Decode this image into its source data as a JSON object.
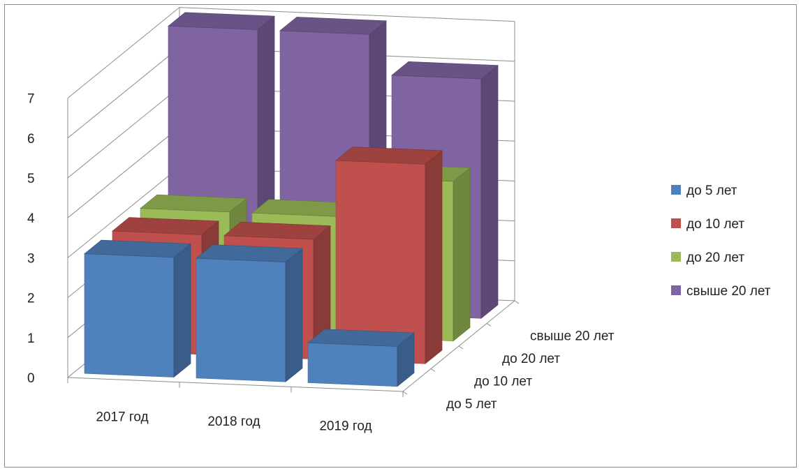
{
  "chart_data": {
    "type": "bar",
    "variant": "3d-column",
    "title": "",
    "xlabel": "",
    "ylabel": "",
    "categories": [
      "2017 год",
      "2018 год",
      "2019 год"
    ],
    "depth_categories": [
      "до 5 лет",
      "до 10 лет",
      "до 20 лет",
      "свыше 20 лет"
    ],
    "y_ticks": [
      "0",
      "1",
      "2",
      "3",
      "4",
      "5",
      "6",
      "7"
    ],
    "ylim": [
      0,
      7
    ],
    "grid": true,
    "legend_position": "right",
    "series": [
      {
        "name": "до 5 лет",
        "color": "#4f81bd",
        "values": [
          3,
          3,
          1
        ]
      },
      {
        "name": "до 10 лет",
        "color": "#c0504d",
        "values": [
          3,
          3,
          5
        ]
      },
      {
        "name": "до 20 лет",
        "color": "#9bbb59",
        "values": [
          3,
          3,
          4
        ]
      },
      {
        "name": "свыше 20 лет",
        "color": "#8064a2",
        "values": [
          7,
          7,
          6
        ]
      }
    ]
  }
}
